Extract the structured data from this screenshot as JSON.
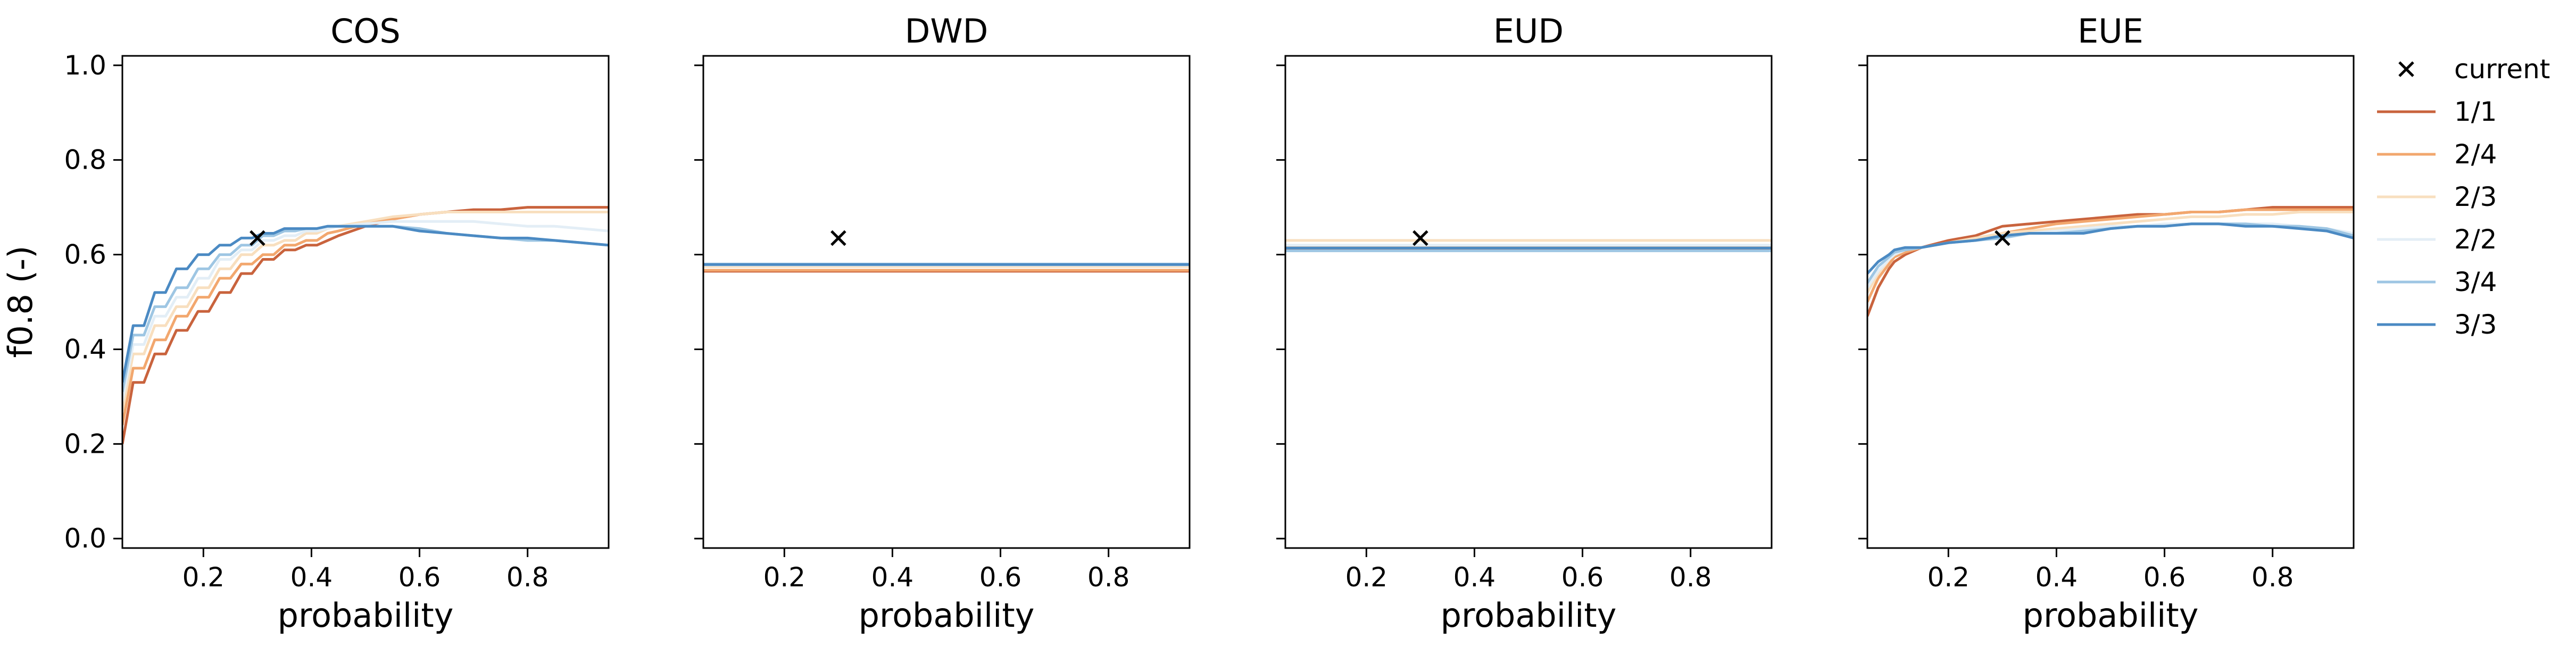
{
  "chart_data": {
    "type": "line",
    "shared_ylabel": "f0.8 (-)",
    "shared_ylim": [
      -0.02,
      1.02
    ],
    "yticks": [
      0.0,
      0.2,
      0.4,
      0.6,
      0.8,
      1.0
    ],
    "ytick_labels": [
      "0.0",
      "0.2",
      "0.4",
      "0.6",
      "0.8",
      "1.0"
    ],
    "xlim": [
      0.05,
      0.95
    ],
    "xticks": [
      0.2,
      0.4,
      0.6,
      0.8
    ],
    "xtick_labels": [
      "0.2",
      "0.4",
      "0.6",
      "0.8"
    ],
    "xlabel": "probability",
    "legend": {
      "placement": "outside right",
      "current_label": "current",
      "entries": [
        {
          "name": "1/1",
          "color": "#c9633d"
        },
        {
          "name": "2/4",
          "color": "#f2a76e"
        },
        {
          "name": "2/3",
          "color": "#f8dfbf"
        },
        {
          "name": "2/2",
          "color": "#e3eef6"
        },
        {
          "name": "3/4",
          "color": "#9ec6e3"
        },
        {
          "name": "3/3",
          "color": "#4b8ac3"
        }
      ]
    },
    "panels": [
      {
        "title": "COS",
        "current": {
          "x": 0.3,
          "y": 0.635
        },
        "series": [
          {
            "name": "1/1",
            "x": [
              0.05,
              0.07,
              0.09,
              0.11,
              0.13,
              0.15,
              0.17,
              0.19,
              0.21,
              0.23,
              0.25,
              0.27,
              0.29,
              0.31,
              0.33,
              0.35,
              0.37,
              0.39,
              0.41,
              0.43,
              0.45,
              0.5,
              0.55,
              0.6,
              0.65,
              0.7,
              0.75,
              0.8,
              0.85,
              0.9,
              0.95
            ],
            "y": [
              0.2,
              0.33,
              0.33,
              0.39,
              0.39,
              0.44,
              0.44,
              0.48,
              0.48,
              0.52,
              0.52,
              0.56,
              0.56,
              0.59,
              0.59,
              0.61,
              0.61,
              0.62,
              0.62,
              0.63,
              0.64,
              0.66,
              0.675,
              0.685,
              0.69,
              0.695,
              0.695,
              0.7,
              0.7,
              0.7,
              0.7
            ]
          },
          {
            "name": "2/4",
            "x": [
              0.05,
              0.07,
              0.09,
              0.11,
              0.13,
              0.15,
              0.17,
              0.19,
              0.21,
              0.23,
              0.25,
              0.27,
              0.29,
              0.31,
              0.33,
              0.35,
              0.37,
              0.39,
              0.41,
              0.43,
              0.45,
              0.5,
              0.55,
              0.6,
              0.65,
              0.7,
              0.75,
              0.8,
              0.85,
              0.9,
              0.95
            ],
            "y": [
              0.24,
              0.36,
              0.36,
              0.42,
              0.42,
              0.47,
              0.47,
              0.51,
              0.51,
              0.55,
              0.55,
              0.58,
              0.58,
              0.6,
              0.6,
              0.62,
              0.62,
              0.63,
              0.63,
              0.645,
              0.65,
              0.665,
              0.675,
              0.685,
              0.69,
              0.69,
              0.69,
              0.69,
              0.69,
              0.69,
              0.69
            ]
          },
          {
            "name": "2/3",
            "x": [
              0.05,
              0.07,
              0.09,
              0.11,
              0.13,
              0.15,
              0.17,
              0.19,
              0.21,
              0.23,
              0.25,
              0.27,
              0.29,
              0.31,
              0.33,
              0.35,
              0.37,
              0.39,
              0.41,
              0.43,
              0.45,
              0.5,
              0.55,
              0.6,
              0.65,
              0.7,
              0.75,
              0.8,
              0.85,
              0.9,
              0.95
            ],
            "y": [
              0.27,
              0.39,
              0.39,
              0.45,
              0.45,
              0.49,
              0.49,
              0.53,
              0.53,
              0.57,
              0.57,
              0.6,
              0.6,
              0.62,
              0.62,
              0.63,
              0.63,
              0.645,
              0.645,
              0.655,
              0.66,
              0.67,
              0.68,
              0.685,
              0.69,
              0.69,
              0.69,
              0.69,
              0.69,
              0.69,
              0.69
            ]
          },
          {
            "name": "2/2",
            "x": [
              0.05,
              0.07,
              0.09,
              0.11,
              0.13,
              0.15,
              0.17,
              0.19,
              0.21,
              0.23,
              0.25,
              0.27,
              0.29,
              0.31,
              0.33,
              0.35,
              0.37,
              0.39,
              0.41,
              0.43,
              0.45,
              0.5,
              0.55,
              0.6,
              0.65,
              0.7,
              0.75,
              0.8,
              0.85,
              0.9,
              0.95
            ],
            "y": [
              0.29,
              0.41,
              0.41,
              0.47,
              0.47,
              0.51,
              0.51,
              0.55,
              0.55,
              0.59,
              0.59,
              0.61,
              0.61,
              0.63,
              0.63,
              0.64,
              0.64,
              0.65,
              0.65,
              0.655,
              0.66,
              0.665,
              0.67,
              0.67,
              0.67,
              0.67,
              0.665,
              0.66,
              0.66,
              0.655,
              0.65
            ]
          },
          {
            "name": "3/4",
            "x": [
              0.05,
              0.07,
              0.09,
              0.11,
              0.13,
              0.15,
              0.17,
              0.19,
              0.21,
              0.23,
              0.25,
              0.27,
              0.29,
              0.31,
              0.33,
              0.35,
              0.37,
              0.39,
              0.41,
              0.43,
              0.45,
              0.5,
              0.55,
              0.6,
              0.65,
              0.7,
              0.75,
              0.8,
              0.85,
              0.9,
              0.95
            ],
            "y": [
              0.31,
              0.43,
              0.43,
              0.49,
              0.49,
              0.53,
              0.53,
              0.57,
              0.57,
              0.6,
              0.6,
              0.62,
              0.62,
              0.64,
              0.64,
              0.65,
              0.65,
              0.655,
              0.655,
              0.66,
              0.66,
              0.66,
              0.66,
              0.655,
              0.645,
              0.64,
              0.635,
              0.63,
              0.63,
              0.625,
              0.62
            ]
          },
          {
            "name": "3/3",
            "x": [
              0.05,
              0.07,
              0.09,
              0.11,
              0.13,
              0.15,
              0.17,
              0.19,
              0.21,
              0.23,
              0.25,
              0.27,
              0.29,
              0.31,
              0.33,
              0.35,
              0.37,
              0.39,
              0.41,
              0.43,
              0.45,
              0.5,
              0.55,
              0.6,
              0.65,
              0.7,
              0.75,
              0.8,
              0.85,
              0.9,
              0.95
            ],
            "y": [
              0.33,
              0.45,
              0.45,
              0.52,
              0.52,
              0.57,
              0.57,
              0.6,
              0.6,
              0.62,
              0.62,
              0.635,
              0.635,
              0.645,
              0.645,
              0.655,
              0.655,
              0.655,
              0.655,
              0.66,
              0.66,
              0.66,
              0.66,
              0.65,
              0.645,
              0.64,
              0.635,
              0.635,
              0.63,
              0.625,
              0.62
            ]
          }
        ]
      },
      {
        "title": "DWD",
        "current": {
          "x": 0.3,
          "y": 0.635
        },
        "series": [
          {
            "name": "1/1",
            "x": [
              0.05,
              0.95
            ],
            "y": [
              0.565,
              0.565
            ]
          },
          {
            "name": "2/4",
            "x": [
              0.05,
              0.95
            ],
            "y": [
              0.567,
              0.567
            ]
          },
          {
            "name": "2/3",
            "x": [
              0.05,
              0.95
            ],
            "y": [
              0.575,
              0.575
            ]
          },
          {
            "name": "2/2",
            "x": [
              0.05,
              0.95
            ],
            "y": [
              0.578,
              0.578
            ]
          },
          {
            "name": "3/4",
            "x": [
              0.05,
              0.95
            ],
            "y": [
              0.58,
              0.58
            ]
          },
          {
            "name": "3/3",
            "x": [
              0.05,
              0.95
            ],
            "y": [
              0.579,
              0.579
            ]
          }
        ]
      },
      {
        "title": "EUD",
        "current": {
          "x": 0.3,
          "y": 0.635
        },
        "series": [
          {
            "name": "1/1",
            "x": [
              0.05,
              0.95
            ],
            "y": [
              0.612,
              0.612
            ]
          },
          {
            "name": "2/4",
            "x": [
              0.05,
              0.95
            ],
            "y": [
              0.618,
              0.618
            ]
          },
          {
            "name": "2/3",
            "x": [
              0.05,
              0.95
            ],
            "y": [
              0.63,
              0.63
            ]
          },
          {
            "name": "2/2",
            "x": [
              0.05,
              0.95
            ],
            "y": [
              0.62,
              0.62
            ]
          },
          {
            "name": "3/4",
            "x": [
              0.05,
              0.95
            ],
            "y": [
              0.608,
              0.608
            ]
          },
          {
            "name": "3/3",
            "x": [
              0.05,
              0.95
            ],
            "y": [
              0.614,
              0.614
            ]
          }
        ]
      },
      {
        "title": "EUE",
        "current": {
          "x": 0.3,
          "y": 0.635
        },
        "series": [
          {
            "name": "1/1",
            "x": [
              0.05,
              0.07,
              0.09,
              0.1,
              0.12,
              0.15,
              0.2,
              0.25,
              0.3,
              0.35,
              0.4,
              0.45,
              0.5,
              0.55,
              0.6,
              0.65,
              0.7,
              0.75,
              0.8,
              0.85,
              0.9,
              0.95
            ],
            "y": [
              0.47,
              0.53,
              0.57,
              0.585,
              0.6,
              0.615,
              0.63,
              0.64,
              0.66,
              0.665,
              0.67,
              0.675,
              0.68,
              0.685,
              0.685,
              0.69,
              0.69,
              0.695,
              0.7,
              0.7,
              0.7,
              0.7
            ]
          },
          {
            "name": "2/4",
            "x": [
              0.05,
              0.07,
              0.09,
              0.1,
              0.12,
              0.15,
              0.2,
              0.25,
              0.3,
              0.35,
              0.4,
              0.45,
              0.5,
              0.55,
              0.6,
              0.65,
              0.7,
              0.75,
              0.8,
              0.85,
              0.9,
              0.95
            ],
            "y": [
              0.5,
              0.55,
              0.58,
              0.595,
              0.605,
              0.615,
              0.625,
              0.635,
              0.645,
              0.655,
              0.665,
              0.67,
              0.675,
              0.68,
              0.685,
              0.69,
              0.69,
              0.695,
              0.695,
              0.695,
              0.695,
              0.695
            ]
          },
          {
            "name": "2/3",
            "x": [
              0.05,
              0.07,
              0.09,
              0.1,
              0.12,
              0.15,
              0.2,
              0.25,
              0.3,
              0.35,
              0.4,
              0.45,
              0.5,
              0.55,
              0.6,
              0.65,
              0.7,
              0.75,
              0.8,
              0.85,
              0.9,
              0.95
            ],
            "y": [
              0.52,
              0.56,
              0.59,
              0.6,
              0.61,
              0.615,
              0.625,
              0.635,
              0.645,
              0.65,
              0.655,
              0.66,
              0.665,
              0.67,
              0.675,
              0.68,
              0.68,
              0.685,
              0.685,
              0.69,
              0.69,
              0.69
            ]
          },
          {
            "name": "2/2",
            "x": [
              0.05,
              0.07,
              0.09,
              0.1,
              0.12,
              0.15,
              0.2,
              0.25,
              0.3,
              0.35,
              0.4,
              0.45,
              0.5,
              0.55,
              0.6,
              0.65,
              0.7,
              0.75,
              0.8,
              0.85,
              0.9,
              0.95
            ],
            "y": [
              0.53,
              0.565,
              0.59,
              0.6,
              0.61,
              0.615,
              0.625,
              0.63,
              0.64,
              0.645,
              0.65,
              0.655,
              0.66,
              0.66,
              0.665,
              0.665,
              0.665,
              0.665,
              0.665,
              0.66,
              0.655,
              0.645
            ]
          },
          {
            "name": "3/4",
            "x": [
              0.05,
              0.07,
              0.09,
              0.1,
              0.12,
              0.15,
              0.2,
              0.25,
              0.3,
              0.35,
              0.4,
              0.45,
              0.5,
              0.55,
              0.6,
              0.65,
              0.7,
              0.75,
              0.8,
              0.85,
              0.9,
              0.95
            ],
            "y": [
              0.54,
              0.575,
              0.595,
              0.605,
              0.61,
              0.615,
              0.625,
              0.63,
              0.635,
              0.645,
              0.645,
              0.65,
              0.655,
              0.66,
              0.66,
              0.665,
              0.665,
              0.665,
              0.66,
              0.66,
              0.655,
              0.64
            ]
          },
          {
            "name": "3/3",
            "x": [
              0.05,
              0.07,
              0.09,
              0.1,
              0.12,
              0.15,
              0.2,
              0.25,
              0.3,
              0.35,
              0.4,
              0.45,
              0.5,
              0.55,
              0.6,
              0.65,
              0.7,
              0.75,
              0.8,
              0.85,
              0.9,
              0.95
            ],
            "y": [
              0.56,
              0.585,
              0.6,
              0.61,
              0.615,
              0.615,
              0.625,
              0.63,
              0.64,
              0.645,
              0.645,
              0.645,
              0.655,
              0.66,
              0.66,
              0.665,
              0.665,
              0.66,
              0.66,
              0.655,
              0.65,
              0.635
            ]
          }
        ]
      }
    ]
  }
}
